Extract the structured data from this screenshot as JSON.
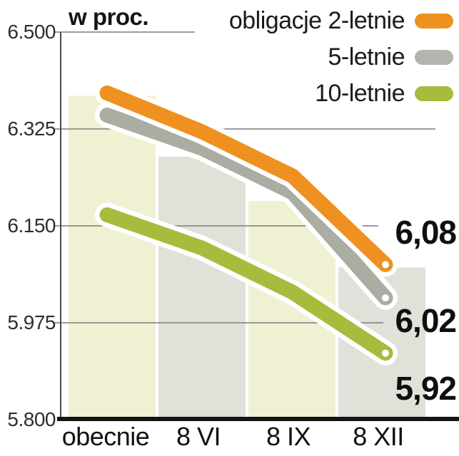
{
  "chart_data": {
    "type": "line",
    "ylabel": "w proc.",
    "x_categories": [
      "obecnie",
      "8 VI",
      "8 IX",
      "8 XII"
    ],
    "series": [
      {
        "name": "obligacje 2-letnie",
        "color": "#ef9120",
        "values": [
          6.39,
          6.32,
          6.24,
          6.08
        ],
        "end_label": "6,08"
      },
      {
        "name": "5-letnie",
        "color": "#abaca2",
        "values": [
          6.35,
          6.29,
          6.21,
          6.02
        ],
        "end_label": "6,02"
      },
      {
        "name": "10-letnie",
        "color": "#a6bc3d",
        "values": [
          6.17,
          6.11,
          6.03,
          5.92
        ],
        "end_label": "5,92"
      }
    ],
    "background_bars": {
      "values": [
        6.385,
        6.275,
        6.195,
        6.075
      ],
      "colors": [
        "#f0f0d3",
        "#e0e2da",
        "#f0f0d3",
        "#e0e2da"
      ]
    },
    "ytick_labels": [
      "6.500",
      "6.325",
      "6.150",
      "5.975",
      "5.800"
    ],
    "ytick_values": [
      6.5,
      6.325,
      6.15,
      5.975,
      5.8
    ],
    "ylim": [
      5.8,
      6.5
    ],
    "grid": true,
    "legend_position": "top-right",
    "line_outline_color": "#ffffff",
    "endpoint_dot_color": "#ffffff"
  },
  "legend": [
    {
      "label": "obligacje 2-letnie",
      "color": "#ef9120"
    },
    {
      "label": "5-letnie",
      "color": "#b3b4ab"
    },
    {
      "label": "10-letnie",
      "color": "#a6bc3d"
    }
  ]
}
